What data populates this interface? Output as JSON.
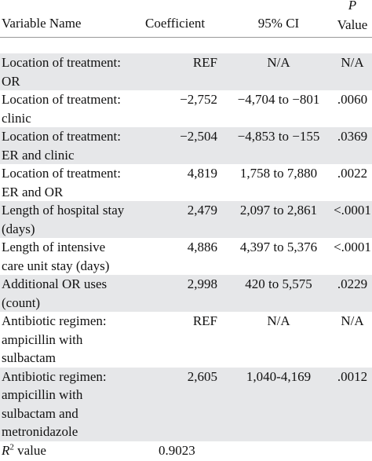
{
  "table": {
    "header": {
      "variable": "Variable Name",
      "coefficient": "Coefficient",
      "ci": "95% CI",
      "p_symbol": "P",
      "p_text": "Value"
    },
    "rows": [
      {
        "variable": [
          "Location of treatment:",
          "OR"
        ],
        "coefficient": "REF",
        "ci": "N/A",
        "p": "N/A"
      },
      {
        "variable": [
          "Location of treatment:",
          "clinic"
        ],
        "coefficient": "−2,752",
        "ci": "−4,704 to −801",
        "p": ".0060"
      },
      {
        "variable": [
          "Location of treatment:",
          "ER and clinic"
        ],
        "coefficient": "−2,504",
        "ci": "−4,853 to −155",
        "p": ".0369"
      },
      {
        "variable": [
          "Location of treatment:",
          "ER and OR"
        ],
        "coefficient": "4,819",
        "ci": "1,758 to 7,880",
        "p": ".0022"
      },
      {
        "variable": [
          "Length of hospital stay",
          "(days)"
        ],
        "coefficient": "2,479",
        "ci": "2,097 to 2,861",
        "p": "<.0001"
      },
      {
        "variable": [
          "Length of intensive",
          "care unit stay (days)"
        ],
        "coefficient": "4,886",
        "ci": "4,397 to 5,376",
        "p": "<.0001"
      },
      {
        "variable": [
          "Additional OR uses",
          "(count)"
        ],
        "coefficient": "2,998",
        "ci": "420 to 5,575",
        "p": ".0229"
      },
      {
        "variable": [
          "Antibiotic regimen:",
          "ampicillin with",
          "sulbactam"
        ],
        "coefficient": "REF",
        "ci": "N/A",
        "p": "N/A"
      },
      {
        "variable": [
          "Antibiotic regimen:",
          "ampicillin with",
          "sulbactam and",
          "metronidazole"
        ],
        "coefficient": "2,605",
        "ci": "1,040-4,169",
        "p": ".0012"
      }
    ],
    "r2": {
      "symbol": "R",
      "superscript": "2",
      "text": "value",
      "coefficient": "0.9023"
    }
  }
}
